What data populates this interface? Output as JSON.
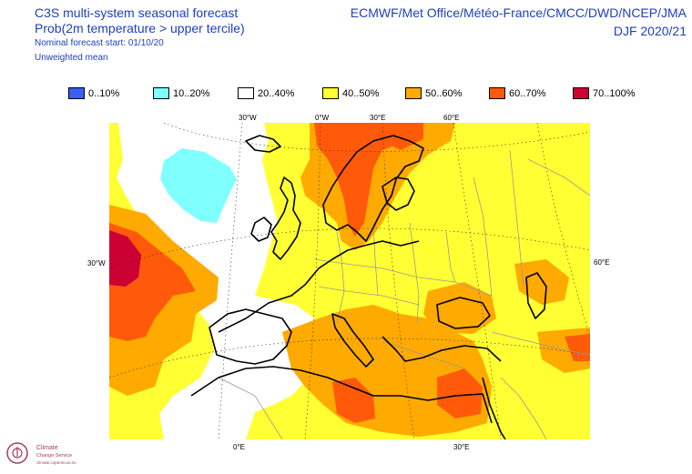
{
  "header": {
    "title": "C3S multi-system seasonal forecast",
    "subtitle": "Prob(2m temperature > upper tercile)",
    "forecast_start": "Nominal forecast start: 01/10/20",
    "mean_type": "Unweighted mean",
    "centres": "ECMWF/Met Office/Météo-France/CMCC/DWD/NCEP/JMA",
    "season": "DJF 2020/21"
  },
  "legend": [
    {
      "label": "0..10%",
      "color": "#3a5ff0"
    },
    {
      "label": "10..20%",
      "color": "#80ffff"
    },
    {
      "label": "20..40%",
      "color": "#ffffff"
    },
    {
      "label": "40..50%",
      "color": "#ffff33"
    },
    {
      "label": "50..60%",
      "color": "#ffaa00"
    },
    {
      "label": "60..70%",
      "color": "#ff5a0a"
    },
    {
      "label": "70..100%",
      "color": "#cc0033"
    }
  ],
  "graticule_labels": {
    "top": [
      "30°W",
      "0°W",
      "30°E",
      "60°E"
    ],
    "left": "30°W",
    "right": "60°E",
    "bottom": [
      "0°E",
      "30°E"
    ]
  },
  "logo": {
    "name": "Climate",
    "line2": "Change Service",
    "line3": "climate.copernicus.eu"
  }
}
